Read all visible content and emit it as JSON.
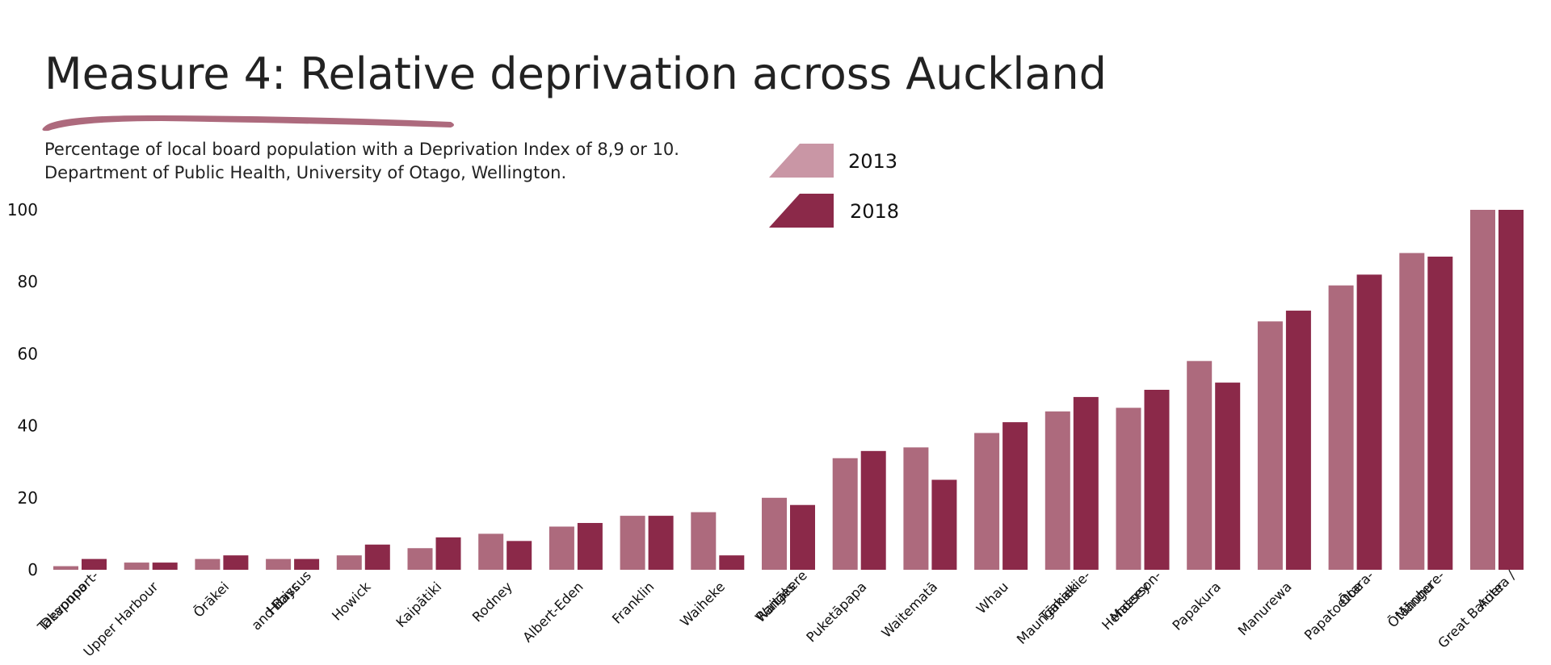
{
  "header": {
    "title": "Measure 4: Relative deprivation across Auckland",
    "subtitle_line1": "Percentage of local board population with a Deprivation Index of 8,9 or 10.",
    "subtitle_line2": "Department of Public Health, University of Otago, Wellington."
  },
  "colors": {
    "series_2013": "#ad6a7d",
    "series_2018": "#8b2949",
    "legend_2013": "#c996a5",
    "brush": "#ad6a7d",
    "text": "#222222"
  },
  "chart_data": {
    "type": "bar",
    "categories": [
      [
        "Devonport-",
        "Takapuna"
      ],
      [
        "Upper Harbour"
      ],
      [
        "Ōrākei"
      ],
      [
        "Hibiscus",
        "and Bays"
      ],
      [
        "Howick"
      ],
      [
        "Kaipātiki"
      ],
      [
        "Rodney"
      ],
      [
        "Albert-Eden"
      ],
      [
        "Franklin"
      ],
      [
        "Waiheke"
      ],
      [
        "Waitākere",
        "Ranges"
      ],
      [
        "Puketāpapa"
      ],
      [
        "Waitematā"
      ],
      [
        "Whau"
      ],
      [
        "Maungakiekie-",
        "Tāmaki"
      ],
      [
        "Henderson-",
        "Massey"
      ],
      [
        "Papakura"
      ],
      [
        "Manurewa"
      ],
      [
        "Ōtara-",
        "Papatoetoe"
      ],
      [
        "Māngere-",
        "Ōtāhuhu"
      ],
      [
        "Aotea /",
        "Great Barrier"
      ]
    ],
    "series": [
      {
        "name": "2013",
        "values": [
          1,
          2,
          3,
          3,
          4,
          6,
          10,
          12,
          15,
          16,
          20,
          31,
          34,
          38,
          44,
          45,
          58,
          69,
          79,
          88,
          100
        ]
      },
      {
        "name": "2018",
        "values": [
          3,
          2,
          4,
          3,
          7,
          9,
          8,
          13,
          15,
          4,
          18,
          33,
          25,
          41,
          48,
          50,
          52,
          72,
          82,
          87,
          100
        ]
      }
    ],
    "yticks": [
      0,
      20,
      40,
      60,
      80,
      100
    ],
    "ylim": [
      0,
      100
    ],
    "legend_placement": "top-center",
    "grid": false
  }
}
